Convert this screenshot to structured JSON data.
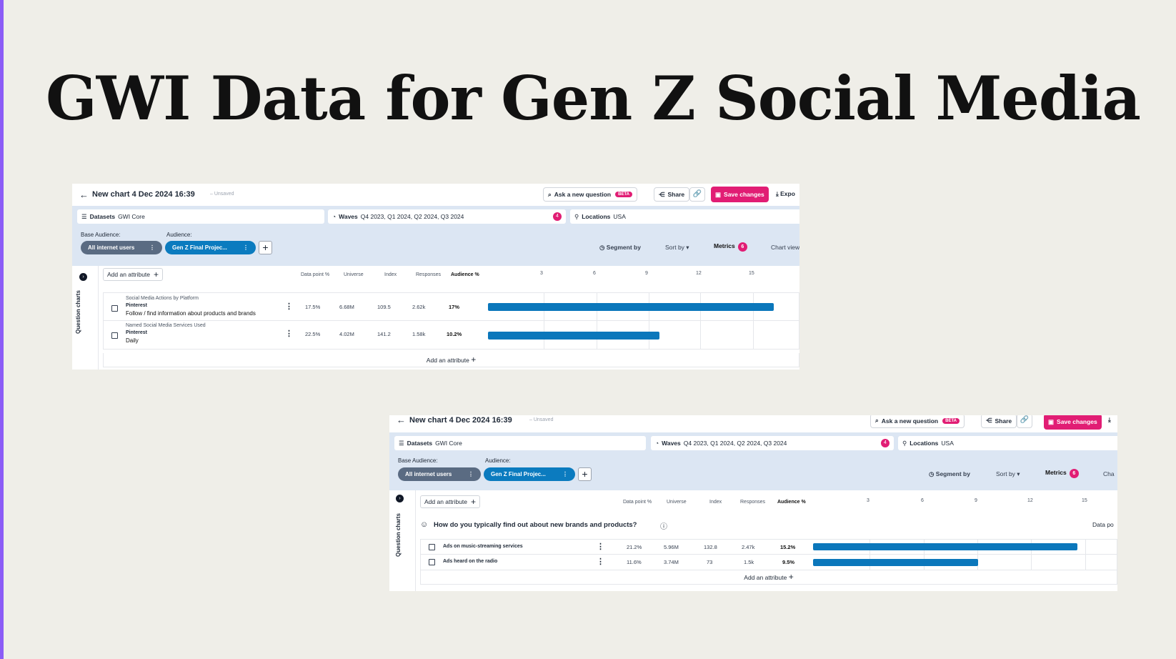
{
  "slide": {
    "title": "GWI Data for Gen Z Social Media"
  },
  "shots": [
    {
      "chart_title": "New chart 4 Dec 2024 16:39",
      "unsaved": "– Unsaved",
      "ask_label": "Ask a new question",
      "beta": "BETA",
      "share_label": "Share",
      "save_label": "Save changes",
      "export_label": "Expo",
      "datasets_label": "Datasets",
      "datasets_value": "GWI Core",
      "waves_label": "Waves",
      "waves_value": "Q4 2023, Q1 2024, Q2 2024, Q3 2024",
      "waves_count": "4",
      "locations_label": "Locations",
      "locations_value": "USA",
      "base_audience_label": "Base Audience:",
      "audience_label": "Audience:",
      "base_pill": "All internet users",
      "audience_pill": "Gen Z Final Projec...",
      "segment_by": "Segment by",
      "sort_by": "Sort by",
      "metrics": "Metrics",
      "metrics_count": "6",
      "chart_view": "Chart view",
      "sidebar_label": "Question charts",
      "add_attribute": "Add an attribute",
      "columns": [
        "Data point %",
        "Universe",
        "Index",
        "Responses",
        "Audience %"
      ],
      "ticks": [
        "3",
        "6",
        "9",
        "12",
        "15"
      ],
      "rows": [
        {
          "category": "Social Media Actions by Platform",
          "platform": "Pinterest",
          "detail": "Follow / find information about products and brands",
          "data_point": "17.5%",
          "universe": "6.68M",
          "index": "109.5",
          "responses": "2.62k",
          "audience": "17%",
          "audience_value": 17
        },
        {
          "category": "Named Social Media Services Used",
          "platform": "Pinterest",
          "detail": "Daily",
          "data_point": "22.5%",
          "universe": "4.02M",
          "index": "141.2",
          "responses": "1.58k",
          "audience": "10.2%",
          "audience_value": 10.2
        }
      ]
    },
    {
      "chart_title": "New chart 4 Dec 2024 16:39",
      "unsaved": "– Unsaved",
      "ask_label": "Ask a new question",
      "beta": "BETA",
      "share_label": "Share",
      "save_label": "Save changes",
      "datasets_label": "Datasets",
      "datasets_value": "GWI Core",
      "waves_label": "Waves",
      "waves_value": "Q4 2023, Q1 2024, Q2 2024, Q3 2024",
      "waves_count": "4",
      "locations_label": "Locations",
      "locations_value": "USA",
      "base_audience_label": "Base Audience:",
      "audience_label": "Audience:",
      "base_pill": "All internet users",
      "audience_pill": "Gen Z Final Projec...",
      "segment_by": "Segment by",
      "sort_by": "Sort by",
      "metrics": "Metrics",
      "metrics_count": "6",
      "chart_view": "Cha",
      "sidebar_label": "Question charts",
      "add_attribute": "Add an attribute",
      "question": "How do you typically find out about new brands and products?",
      "data_point_cut": "Data po",
      "columns": [
        "Data point %",
        "Universe",
        "Index",
        "Responses",
        "Audience %"
      ],
      "ticks": [
        "3",
        "6",
        "9",
        "12",
        "15"
      ],
      "rows": [
        {
          "label": "Ads on music-streaming services",
          "data_point": "21.2%",
          "universe": "5.96M",
          "index": "132.8",
          "responses": "2.47k",
          "audience": "15.2%",
          "audience_value": 15.2
        },
        {
          "label": "Ads heard on the radio",
          "data_point": "11.6%",
          "universe": "3.74M",
          "index": "73",
          "responses": "1.5k",
          "audience": "9.5%",
          "audience_value": 9.5
        }
      ]
    }
  ]
}
